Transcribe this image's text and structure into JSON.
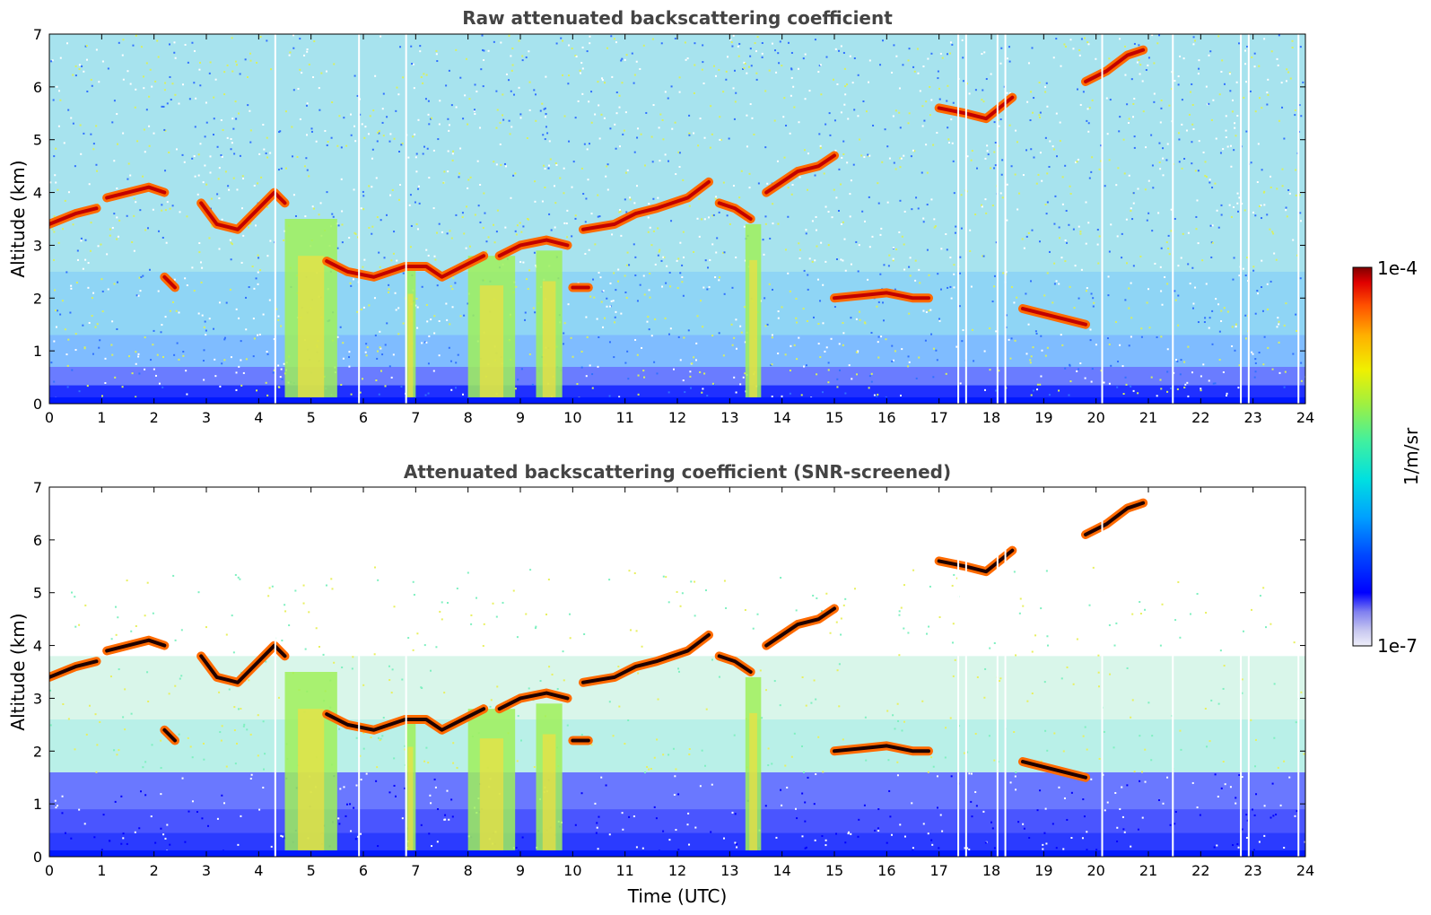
{
  "chart_data": [
    {
      "type": "heatmap",
      "title": "Raw attenuated backscattering coefficient",
      "ylabel": "Altitude (km)",
      "xlabel": "",
      "xlim": [
        0,
        24
      ],
      "ylim": [
        0,
        7
      ],
      "x_ticks": [
        "0",
        "1",
        "2",
        "3",
        "4",
        "5",
        "6",
        "7",
        "8",
        "9",
        "10",
        "11",
        "12",
        "13",
        "14",
        "15",
        "16",
        "17",
        "18",
        "19",
        "20",
        "21",
        "22",
        "23",
        "24"
      ],
      "y_ticks": [
        "0",
        "1",
        "2",
        "3",
        "4",
        "5",
        "6",
        "7"
      ],
      "background": "noisy",
      "features": [
        {
          "kind": "cloud-layer",
          "x": [
            0.0,
            0.5,
            0.9
          ],
          "y": [
            3.4,
            3.6,
            3.7
          ]
        },
        {
          "kind": "cloud-layer",
          "x": [
            1.1,
            1.5,
            1.9,
            2.2
          ],
          "y": [
            3.9,
            4.0,
            4.1,
            4.0
          ]
        },
        {
          "kind": "cloud-layer",
          "x": [
            2.2,
            2.4
          ],
          "y": [
            2.4,
            2.2
          ]
        },
        {
          "kind": "cloud-layer",
          "x": [
            2.9,
            3.2,
            3.6,
            4.0,
            4.3,
            4.5
          ],
          "y": [
            3.8,
            3.4,
            3.3,
            3.7,
            4.0,
            3.8
          ]
        },
        {
          "kind": "cloud-layer",
          "x": [
            5.3,
            5.7,
            6.2,
            6.8,
            7.2,
            7.5,
            7.9,
            8.3
          ],
          "y": [
            2.7,
            2.5,
            2.4,
            2.6,
            2.6,
            2.4,
            2.6,
            2.8
          ]
        },
        {
          "kind": "cloud-layer",
          "x": [
            8.6,
            9.0,
            9.5,
            9.9
          ],
          "y": [
            2.8,
            3.0,
            3.1,
            3.0
          ]
        },
        {
          "kind": "cloud-layer",
          "x": [
            10.0,
            10.3
          ],
          "y": [
            2.2,
            2.2
          ]
        },
        {
          "kind": "cloud-layer",
          "x": [
            10.2,
            10.8,
            11.2,
            11.6,
            12.2,
            12.6
          ],
          "y": [
            3.3,
            3.4,
            3.6,
            3.7,
            3.9,
            4.2
          ]
        },
        {
          "kind": "cloud-layer",
          "x": [
            12.8,
            13.1,
            13.4
          ],
          "y": [
            3.8,
            3.7,
            3.5
          ]
        },
        {
          "kind": "cloud-layer",
          "x": [
            13.7,
            14.0,
            14.3,
            14.7,
            15.0
          ],
          "y": [
            4.0,
            4.2,
            4.4,
            4.5,
            4.7
          ]
        },
        {
          "kind": "cloud-layer",
          "x": [
            15.0,
            15.5,
            16.0,
            16.5,
            16.8
          ],
          "y": [
            2.0,
            2.05,
            2.1,
            2.0,
            2.0
          ]
        },
        {
          "kind": "cloud-layer",
          "x": [
            17.0,
            17.5,
            17.9,
            18.4
          ],
          "y": [
            5.6,
            5.5,
            5.4,
            5.8
          ]
        },
        {
          "kind": "cloud-layer",
          "x": [
            18.6,
            19.0,
            19.4,
            19.8
          ],
          "y": [
            1.8,
            1.7,
            1.6,
            1.5
          ]
        },
        {
          "kind": "cloud-layer",
          "x": [
            19.8,
            20.2,
            20.6,
            20.9
          ],
          "y": [
            6.1,
            6.3,
            6.6,
            6.7
          ]
        },
        {
          "kind": "precipitation",
          "x": [
            4.5,
            5.5
          ],
          "top": 3.5
        },
        {
          "kind": "precipitation",
          "x": [
            6.8,
            7.0
          ],
          "top": 2.6
        },
        {
          "kind": "precipitation",
          "x": [
            8.0,
            8.9
          ],
          "top": 2.8
        },
        {
          "kind": "precipitation",
          "x": [
            9.3,
            9.8
          ],
          "top": 2.9
        },
        {
          "kind": "precipitation",
          "x": [
            13.3,
            13.6
          ],
          "top": 3.4
        }
      ],
      "data_gaps_hours": [
        4.3,
        5.9,
        6.8,
        17.35,
        17.5,
        18.1,
        18.25,
        20.1,
        21.45,
        22.75,
        22.9,
        23.85
      ]
    },
    {
      "type": "heatmap",
      "title": "Attenuated backscattering coefficient (SNR-screened)",
      "ylabel": "Altitude (km)",
      "xlabel": "Time (UTC)",
      "xlim": [
        0,
        24
      ],
      "ylim": [
        0,
        7
      ],
      "x_ticks": [
        "0",
        "1",
        "2",
        "3",
        "4",
        "5",
        "6",
        "7",
        "8",
        "9",
        "10",
        "11",
        "12",
        "13",
        "14",
        "15",
        "16",
        "17",
        "18",
        "19",
        "20",
        "21",
        "22",
        "23",
        "24"
      ],
      "y_ticks": [
        "0",
        "1",
        "2",
        "3",
        "4",
        "5",
        "6",
        "7"
      ],
      "background": "screened",
      "features": "same as panel 1",
      "data_gaps_hours": [
        4.3,
        5.9,
        6.8,
        17.35,
        17.5,
        18.1,
        18.25,
        20.1,
        21.45,
        22.75,
        22.9,
        23.85
      ]
    }
  ],
  "colorbar": {
    "label": "1/m/sr",
    "max_label": "1e-4",
    "min_label": "1e-7",
    "scale": "log",
    "range": [
      1e-07,
      0.0001
    ],
    "colormap": [
      "#efeffa",
      "#c8c8f0",
      "#8080f0",
      "#0000ff",
      "#0048ff",
      "#00a0ff",
      "#00e0e0",
      "#40f0a0",
      "#a0f040",
      "#f0f000",
      "#ffb000",
      "#ff5000",
      "#e00000",
      "#800000"
    ]
  }
}
